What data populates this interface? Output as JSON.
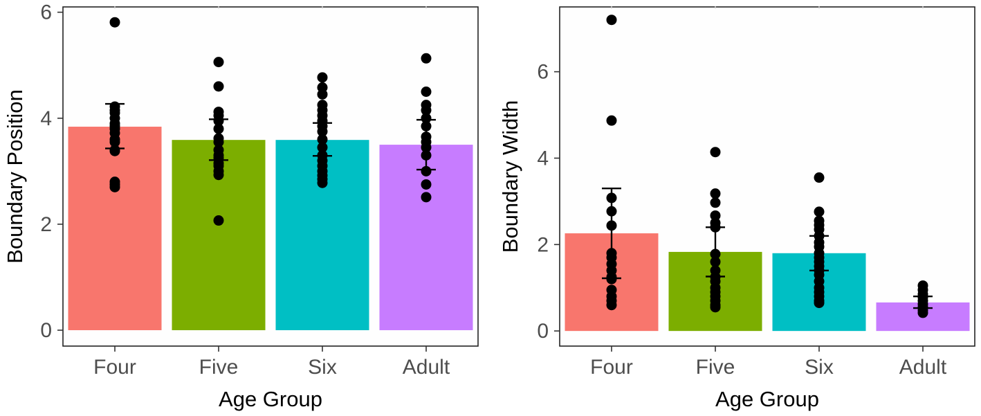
{
  "chart_data": [
    {
      "type": "bar",
      "title": "",
      "xlabel": "Age Group",
      "ylabel": "Boundary Position",
      "categories": [
        "Four",
        "Five",
        "Six",
        "Adult"
      ],
      "colors": [
        "#F8766D",
        "#7CAE00",
        "#00BFC4",
        "#C77CFF"
      ],
      "ylim": [
        -0.3,
        6.1
      ],
      "yticks": [
        0,
        2,
        4,
        6
      ],
      "yticklabels": [
        "0",
        "2",
        "4",
        "6"
      ],
      "grid": false,
      "legend": "none",
      "values": [
        3.84,
        3.59,
        3.59,
        3.5
      ],
      "error_bars": [
        [
          3.43,
          4.27
        ],
        [
          3.21,
          3.98
        ],
        [
          3.29,
          3.91
        ],
        [
          3.03,
          3.97
        ]
      ],
      "points": [
        [
          5.81,
          4.22,
          4.15,
          4.1,
          4.0,
          3.9,
          3.85,
          3.8,
          3.72,
          3.6,
          3.55,
          3.4,
          3.38,
          2.8,
          2.75,
          2.7
        ],
        [
          5.06,
          4.6,
          4.12,
          4.05,
          3.95,
          3.8,
          3.62,
          3.55,
          3.4,
          3.3,
          3.25,
          3.15,
          3.1,
          3.0,
          2.93,
          2.07
        ],
        [
          4.77,
          4.58,
          4.45,
          4.25,
          4.15,
          4.05,
          3.95,
          3.85,
          3.75,
          3.6,
          3.45,
          3.3,
          3.2,
          3.1,
          3.0,
          2.92,
          2.85,
          2.78
        ],
        [
          5.13,
          4.5,
          4.25,
          4.15,
          4.0,
          3.85,
          3.65,
          3.55,
          3.45,
          3.3,
          3.0,
          2.75,
          2.51
        ]
      ]
    },
    {
      "type": "bar",
      "title": "",
      "xlabel": "Age Group",
      "ylabel": "Boundary Width",
      "categories": [
        "Four",
        "Five",
        "Six",
        "Adult"
      ],
      "colors": [
        "#F8766D",
        "#7CAE00",
        "#00BFC4",
        "#C77CFF"
      ],
      "ylim": [
        -0.35,
        7.5
      ],
      "yticks": [
        0,
        2,
        4,
        6
      ],
      "yticklabels": [
        "0",
        "2",
        "4",
        "6"
      ],
      "grid": false,
      "legend": "none",
      "values": [
        2.26,
        1.83,
        1.8,
        0.66
      ],
      "error_bars": [
        [
          1.22,
          3.3
        ],
        [
          1.26,
          2.4
        ],
        [
          1.4,
          2.2
        ],
        [
          0.53,
          0.8
        ]
      ],
      "points": [
        [
          7.2,
          4.87,
          3.08,
          2.77,
          2.44,
          1.8,
          1.7,
          1.55,
          1.4,
          1.25,
          1.2,
          0.95,
          0.8,
          0.7,
          0.6
        ],
        [
          4.14,
          3.18,
          2.97,
          2.67,
          2.5,
          2.4,
          1.78,
          1.6,
          1.4,
          1.25,
          1.15,
          1.0,
          0.9,
          0.8,
          0.7,
          0.6,
          0.55
        ],
        [
          3.55,
          2.76,
          2.55,
          2.45,
          2.35,
          2.2,
          2.05,
          1.95,
          1.8,
          1.7,
          1.6,
          1.5,
          1.4,
          1.3,
          1.15,
          1.0,
          0.9,
          0.8,
          0.7,
          0.65
        ],
        [
          1.05,
          0.95,
          0.85,
          0.78,
          0.7,
          0.62,
          0.55,
          0.48,
          0.42
        ]
      ]
    }
  ]
}
